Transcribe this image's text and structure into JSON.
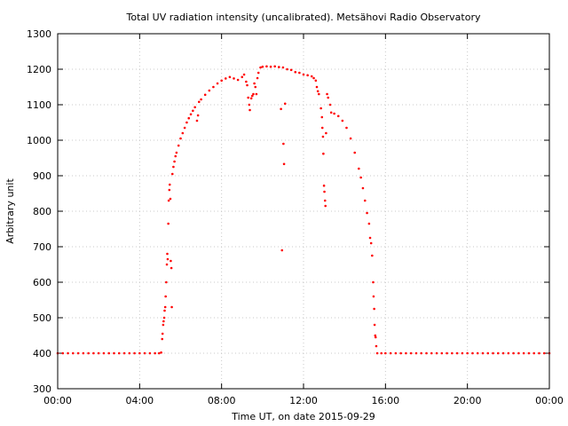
{
  "chart_data": {
    "type": "scatter",
    "title": "Total UV radiation intensity (uncalibrated). Metsähovi Radio Observatory",
    "xlabel": "Time UT, on date 2015-09-29",
    "ylabel": "Arbitrary unit",
    "xlim": [
      0,
      24
    ],
    "ylim": [
      300,
      1300
    ],
    "x_ticks": [
      {
        "value": 0,
        "label": "00:00"
      },
      {
        "value": 4,
        "label": "04:00"
      },
      {
        "value": 8,
        "label": "08:00"
      },
      {
        "value": 12,
        "label": "12:00"
      },
      {
        "value": 16,
        "label": "16:00"
      },
      {
        "value": 20,
        "label": "20:00"
      },
      {
        "value": 24,
        "label": "00:00"
      }
    ],
    "y_ticks": [
      {
        "value": 300,
        "label": "300"
      },
      {
        "value": 400,
        "label": "400"
      },
      {
        "value": 500,
        "label": "500"
      },
      {
        "value": 600,
        "label": "600"
      },
      {
        "value": 700,
        "label": "700"
      },
      {
        "value": 800,
        "label": "800"
      },
      {
        "value": 900,
        "label": "900"
      },
      {
        "value": 1000,
        "label": "1000"
      },
      {
        "value": 1100,
        "label": "1100"
      },
      {
        "value": 1200,
        "label": "1200"
      },
      {
        "value": 1300,
        "label": "1300"
      }
    ],
    "grid": true,
    "series": [
      {
        "color": "#ff0000",
        "points": [
          [
            0.0,
            400
          ],
          [
            0.25,
            400
          ],
          [
            0.5,
            400
          ],
          [
            0.75,
            400
          ],
          [
            1.0,
            400
          ],
          [
            1.25,
            400
          ],
          [
            1.5,
            400
          ],
          [
            1.75,
            400
          ],
          [
            2.0,
            400
          ],
          [
            2.25,
            400
          ],
          [
            2.5,
            400
          ],
          [
            2.75,
            400
          ],
          [
            3.0,
            400
          ],
          [
            3.25,
            400
          ],
          [
            3.5,
            400
          ],
          [
            3.75,
            400
          ],
          [
            4.0,
            400
          ],
          [
            4.25,
            400
          ],
          [
            4.5,
            400
          ],
          [
            4.75,
            400
          ],
          [
            4.95,
            400
          ],
          [
            5.05,
            402
          ],
          [
            5.1,
            440
          ],
          [
            5.12,
            455
          ],
          [
            5.15,
            480
          ],
          [
            5.17,
            490
          ],
          [
            5.2,
            500
          ],
          [
            5.22,
            520
          ],
          [
            5.25,
            530
          ],
          [
            5.27,
            560
          ],
          [
            5.3,
            600
          ],
          [
            5.33,
            650
          ],
          [
            5.35,
            680
          ],
          [
            5.37,
            665
          ],
          [
            5.4,
            765
          ],
          [
            5.42,
            830
          ],
          [
            5.45,
            860
          ],
          [
            5.47,
            875
          ],
          [
            5.5,
            835
          ],
          [
            5.52,
            660
          ],
          [
            5.55,
            640
          ],
          [
            5.57,
            530
          ],
          [
            5.6,
            905
          ],
          [
            5.65,
            925
          ],
          [
            5.7,
            940
          ],
          [
            5.75,
            955
          ],
          [
            5.8,
            965
          ],
          [
            5.9,
            985
          ],
          [
            6.0,
            1005
          ],
          [
            6.1,
            1020
          ],
          [
            6.2,
            1035
          ],
          [
            6.3,
            1050
          ],
          [
            6.4,
            1062
          ],
          [
            6.5,
            1073
          ],
          [
            6.6,
            1083
          ],
          [
            6.7,
            1093
          ],
          [
            6.8,
            1055
          ],
          [
            6.85,
            1070
          ],
          [
            6.9,
            1108
          ],
          [
            7.0,
            1115
          ],
          [
            7.2,
            1128
          ],
          [
            7.4,
            1140
          ],
          [
            7.6,
            1150
          ],
          [
            7.8,
            1160
          ],
          [
            8.0,
            1168
          ],
          [
            8.2,
            1174
          ],
          [
            8.4,
            1178
          ],
          [
            8.6,
            1174
          ],
          [
            8.8,
            1170
          ],
          [
            9.0,
            1178
          ],
          [
            9.1,
            1185
          ],
          [
            9.2,
            1165
          ],
          [
            9.25,
            1155
          ],
          [
            9.3,
            1120
          ],
          [
            9.35,
            1100
          ],
          [
            9.38,
            1085
          ],
          [
            9.45,
            1118
          ],
          [
            9.5,
            1125
          ],
          [
            9.55,
            1130
          ],
          [
            9.6,
            1160
          ],
          [
            9.65,
            1150
          ],
          [
            9.7,
            1130
          ],
          [
            9.75,
            1175
          ],
          [
            9.8,
            1190
          ],
          [
            9.9,
            1205
          ],
          [
            10.0,
            1207
          ],
          [
            10.2,
            1208
          ],
          [
            10.4,
            1207
          ],
          [
            10.6,
            1208
          ],
          [
            10.8,
            1206
          ],
          [
            10.9,
            1088
          ],
          [
            10.95,
            690
          ],
          [
            11.0,
            1205
          ],
          [
            11.02,
            990
          ],
          [
            11.05,
            933
          ],
          [
            11.1,
            1103
          ],
          [
            11.2,
            1200
          ],
          [
            11.4,
            1198
          ],
          [
            11.6,
            1192
          ],
          [
            11.8,
            1190
          ],
          [
            12.0,
            1185
          ],
          [
            12.2,
            1183
          ],
          [
            12.4,
            1180
          ],
          [
            12.5,
            1175
          ],
          [
            12.6,
            1168
          ],
          [
            12.65,
            1150
          ],
          [
            12.7,
            1138
          ],
          [
            12.75,
            1130
          ],
          [
            12.85,
            1090
          ],
          [
            12.9,
            1065
          ],
          [
            12.92,
            1035
          ],
          [
            12.95,
            1010
          ],
          [
            12.97,
            962
          ],
          [
            13.0,
            872
          ],
          [
            13.02,
            855
          ],
          [
            13.05,
            830
          ],
          [
            13.07,
            815
          ],
          [
            13.1,
            1020
          ],
          [
            13.15,
            1130
          ],
          [
            13.2,
            1120
          ],
          [
            13.3,
            1100
          ],
          [
            13.35,
            1078
          ],
          [
            13.5,
            1075
          ],
          [
            13.7,
            1068
          ],
          [
            13.9,
            1055
          ],
          [
            14.1,
            1035
          ],
          [
            14.3,
            1005
          ],
          [
            14.5,
            965
          ],
          [
            14.7,
            920
          ],
          [
            14.8,
            895
          ],
          [
            14.9,
            865
          ],
          [
            15.0,
            830
          ],
          [
            15.1,
            795
          ],
          [
            15.2,
            765
          ],
          [
            15.25,
            725
          ],
          [
            15.3,
            710
          ],
          [
            15.35,
            675
          ],
          [
            15.4,
            600
          ],
          [
            15.42,
            560
          ],
          [
            15.45,
            525
          ],
          [
            15.47,
            480
          ],
          [
            15.5,
            450
          ],
          [
            15.52,
            445
          ],
          [
            15.55,
            420
          ],
          [
            15.6,
            400
          ],
          [
            15.8,
            400
          ],
          [
            16.0,
            400
          ],
          [
            16.25,
            400
          ],
          [
            16.5,
            400
          ],
          [
            16.75,
            400
          ],
          [
            17.0,
            400
          ],
          [
            17.25,
            400
          ],
          [
            17.5,
            400
          ],
          [
            17.75,
            400
          ],
          [
            18.0,
            400
          ],
          [
            18.25,
            400
          ],
          [
            18.5,
            400
          ],
          [
            18.75,
            400
          ],
          [
            19.0,
            400
          ],
          [
            19.25,
            400
          ],
          [
            19.5,
            400
          ],
          [
            19.75,
            400
          ],
          [
            20.0,
            400
          ],
          [
            20.25,
            400
          ],
          [
            20.5,
            400
          ],
          [
            20.75,
            400
          ],
          [
            21.0,
            400
          ],
          [
            21.25,
            400
          ],
          [
            21.5,
            400
          ],
          [
            21.75,
            400
          ],
          [
            22.0,
            400
          ],
          [
            22.25,
            400
          ],
          [
            22.5,
            400
          ],
          [
            22.75,
            400
          ],
          [
            23.0,
            400
          ],
          [
            23.25,
            400
          ],
          [
            23.5,
            400
          ],
          [
            23.75,
            400
          ],
          [
            24.0,
            400
          ]
        ]
      }
    ]
  }
}
